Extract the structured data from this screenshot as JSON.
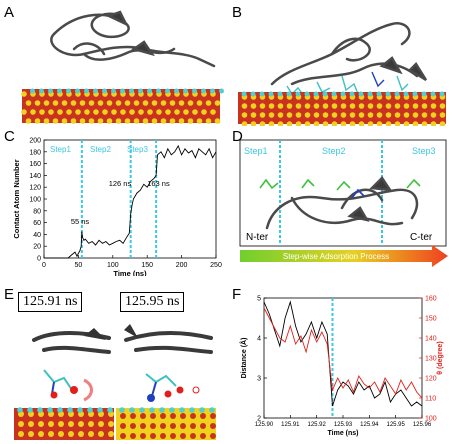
{
  "panels": {
    "a": "A",
    "b": "B",
    "c": "C",
    "d": "D",
    "e": "E",
    "f": "F"
  },
  "colors": {
    "surface_red": "#c8321e",
    "surface_yellow": "#f0d21e",
    "surface_cyan": "#4fd0d0",
    "protein_gray": "#5a5a5a",
    "step_line": "#3cc8e0",
    "arrow_start": "#6fcf2f",
    "arrow_end": "#f04020",
    "angle_red": "#e0201a"
  },
  "panel_c": {
    "steps": [
      "Step1",
      "Step2",
      "Step3"
    ],
    "annotations": [
      "55 ns",
      "126 ns",
      "163 ns"
    ]
  },
  "panel_d": {
    "steps": [
      "Step1",
      "Step2",
      "Step3"
    ],
    "n_ter": "N-ter",
    "c_ter": "C-ter",
    "process": "Step-wise Adsorption Process"
  },
  "panel_e": {
    "time_left": "125.91 ns",
    "time_right": "125.95 ns"
  },
  "chart_data": [
    {
      "type": "line",
      "xlabel": "Time (ns)",
      "ylabel": "Contact Atom Number",
      "xlim": [
        0,
        250
      ],
      "ylim": [
        0,
        200
      ],
      "xticks": [
        0,
        50,
        100,
        150,
        200,
        250
      ],
      "yticks": [
        0,
        20,
        40,
        60,
        80,
        100,
        120,
        140,
        160,
        180,
        200
      ],
      "vlines": [
        55,
        126,
        163
      ],
      "series": [
        {
          "x": [
            0,
            20,
            35,
            40,
            45,
            48,
            50,
            52,
            54,
            55,
            56,
            58,
            60,
            65,
            70,
            75,
            80,
            85,
            90,
            95,
            100,
            105,
            110,
            115,
            120,
            124,
            126,
            128,
            130,
            135,
            140,
            145,
            150,
            155,
            160,
            163,
            165,
            170,
            175,
            180,
            185,
            190,
            195,
            200,
            205,
            210,
            215,
            220,
            225,
            230,
            235,
            240,
            245,
            250
          ],
          "y": [
            0,
            0,
            0,
            5,
            10,
            3,
            8,
            12,
            20,
            45,
            35,
            30,
            32,
            25,
            28,
            22,
            30,
            25,
            28,
            22,
            25,
            28,
            30,
            25,
            35,
            42,
            75,
            90,
            100,
            110,
            115,
            125,
            120,
            130,
            135,
            140,
            175,
            180,
            170,
            185,
            175,
            180,
            190,
            175,
            185,
            178,
            182,
            170,
            185,
            180,
            175,
            185,
            170,
            180
          ]
        }
      ]
    },
    {
      "type": "line",
      "xlabel": "Time (ns)",
      "ylabel": "Distance (Å)",
      "y2label": "θ (degree)",
      "xlim": [
        125.9,
        125.96
      ],
      "ylim": [
        2,
        5
      ],
      "y2lim": [
        100,
        160
      ],
      "xticks": [
        125.9,
        125.91,
        125.92,
        125.93,
        125.94,
        125.95,
        125.96
      ],
      "yticks": [
        2,
        3,
        4,
        5
      ],
      "y2ticks": [
        100,
        110,
        120,
        130,
        140,
        150,
        160
      ],
      "vline": 125.926,
      "series": [
        {
          "name": "",
          "axis": "left",
          "color": "#000000",
          "x": [
            125.9,
            125.902,
            125.904,
            125.906,
            125.908,
            125.91,
            125.912,
            125.914,
            125.916,
            125.918,
            125.92,
            125.922,
            125.924,
            125.926,
            125.928,
            125.93,
            125.932,
            125.934,
            125.936,
            125.938,
            125.94,
            125.942,
            125.944,
            125.946,
            125.948,
            125.95,
            125.952,
            125.954,
            125.956,
            125.958,
            125.96
          ],
          "y": [
            4.9,
            4.6,
            4.2,
            3.8,
            4.5,
            4.9,
            4.3,
            3.9,
            4.1,
            4.4,
            4.0,
            4.4,
            4.1,
            2.3,
            2.7,
            2.9,
            2.8,
            2.6,
            2.9,
            2.7,
            2.8,
            2.5,
            2.6,
            2.9,
            2.4,
            2.6,
            2.7,
            2.5,
            2.3,
            2.4,
            2.3
          ]
        },
        {
          "name": "",
          "axis": "right",
          "color": "#e0201a",
          "x": [
            125.9,
            125.902,
            125.904,
            125.906,
            125.908,
            125.91,
            125.912,
            125.914,
            125.916,
            125.918,
            125.92,
            125.922,
            125.924,
            125.926,
            125.928,
            125.93,
            125.932,
            125.934,
            125.936,
            125.938,
            125.94,
            125.942,
            125.944,
            125.946,
            125.948,
            125.95,
            125.952,
            125.954,
            125.956,
            125.958,
            125.96
          ],
          "y": [
            155,
            150,
            145,
            140,
            138,
            146,
            137,
            141,
            133,
            144,
            138,
            143,
            137,
            114,
            120,
            115,
            119,
            113,
            121,
            117,
            115,
            118,
            113,
            120,
            116,
            112,
            119,
            114,
            118,
            113,
            110
          ]
        }
      ]
    }
  ]
}
